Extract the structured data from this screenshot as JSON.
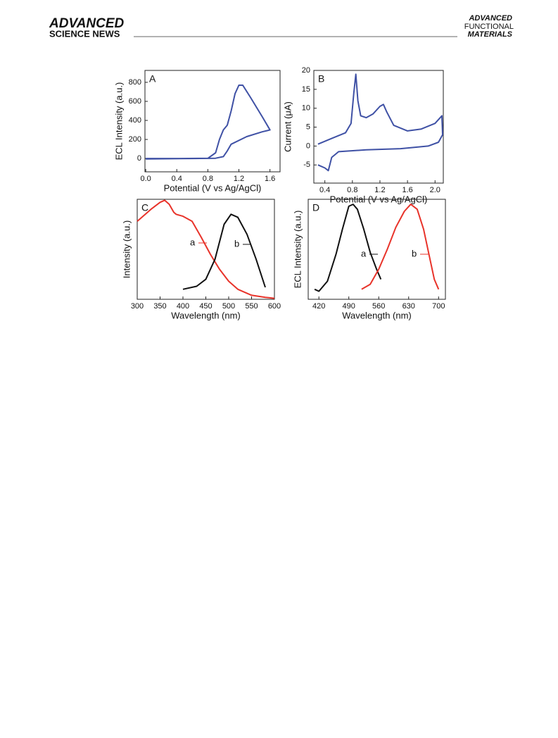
{
  "header": {
    "brand_top": "ADVANCED",
    "brand_bottom": "SCIENCE NEWS",
    "journal": [
      "ADVANCED",
      "FUNCTIONAL",
      "MATERIALS"
    ]
  },
  "chart_data": [
    {
      "type": "line",
      "panel": "A",
      "xlabel": "Potential (V vs Ag/AgCl)",
      "ylabel": "ECL Intensity (a.u.)",
      "xlim": [
        -0.01,
        1.73
      ],
      "ylim": [
        -140,
        925
      ],
      "xticks": [
        {
          "value": 0,
          "label": "0.0"
        },
        0.4,
        0.8,
        1.2,
        1.6
      ],
      "yticks": [
        0,
        200,
        400,
        600,
        800
      ],
      "series": [
        {
          "color": "#3f51a5",
          "x": [
            0,
            0.4,
            0.8,
            0.9,
            0.95,
            1.0,
            1.05,
            1.1,
            1.15,
            1.2,
            1.25,
            1.35,
            1.5,
            1.6,
            1.5,
            1.3,
            1.1,
            1.05,
            1.0,
            0.9,
            0.6,
            0
          ],
          "values": [
            0,
            0,
            2,
            60,
            200,
            300,
            350,
            500,
            680,
            770,
            770,
            640,
            440,
            300,
            280,
            230,
            150,
            80,
            20,
            3,
            0,
            -5
          ]
        }
      ]
    },
    {
      "type": "line",
      "panel": "B",
      "xlabel": "Potential (V vs Ag/AgCl)",
      "ylabel": "Current (μA)",
      "xlim": [
        0.24,
        2.12
      ],
      "ylim": [
        -9.8,
        20
      ],
      "xticks": [
        0.4,
        0.8,
        1.2,
        1.6,
        {
          "value": 2,
          "label": "2.0"
        }
      ],
      "yticks": [
        -5,
        0,
        5,
        10,
        15,
        20
      ],
      "series": [
        {
          "color": "#3f51a5",
          "x": [
            0.3,
            0.5,
            0.7,
            0.78,
            0.82,
            0.85,
            0.88,
            0.92,
            1.0,
            1.1,
            1.2,
            1.25,
            1.3,
            1.4,
            1.6,
            1.8,
            2.0,
            2.1,
            2.11,
            2.05,
            1.9,
            1.5,
            1.0,
            0.6,
            0.5,
            0.45,
            0.4,
            0.3
          ],
          "values": [
            0.5,
            2,
            3.5,
            6,
            14,
            19,
            12,
            8,
            7.5,
            8.5,
            10.5,
            11,
            9,
            5.5,
            4,
            4.5,
            6,
            8,
            3,
            1,
            0,
            -0.7,
            -1,
            -1.5,
            -3,
            -6.5,
            -5.8,
            -5
          ]
        }
      ]
    },
    {
      "type": "line",
      "panel": "C",
      "xlabel": "Wavelength (nm)",
      "ylabel": "Intensity (a.u.)",
      "xlim": [
        300,
        600
      ],
      "ylim": [
        0,
        1
      ],
      "xticks": [
        300,
        350,
        400,
        450,
        500,
        550,
        600
      ],
      "series": [
        {
          "name": "a",
          "color": "#e8332a",
          "x": [
            300,
            310,
            330,
            350,
            360,
            370,
            380,
            385,
            400,
            420,
            440,
            460,
            480,
            500,
            520,
            550,
            580,
            600
          ],
          "values": [
            0.78,
            0.82,
            0.9,
            0.97,
            0.99,
            0.95,
            0.87,
            0.85,
            0.83,
            0.78,
            0.62,
            0.45,
            0.3,
            0.18,
            0.1,
            0.04,
            0.02,
            0.01
          ]
        },
        {
          "name": "b",
          "color": "#111111",
          "x": [
            400,
            430,
            450,
            470,
            490,
            505,
            520,
            540,
            560,
            580
          ],
          "values": [
            0.1,
            0.13,
            0.2,
            0.4,
            0.75,
            0.85,
            0.82,
            0.65,
            0.4,
            0.12
          ]
        }
      ]
    },
    {
      "type": "line",
      "panel": "D",
      "xlabel": "Wavelength (nm)",
      "ylabel": "ECL Intensity (a.u.)",
      "xlim": [
        395,
        716
      ],
      "ylim": [
        0,
        1
      ],
      "xticks": [
        420,
        490,
        560,
        630,
        700
      ],
      "series": [
        {
          "name": "a",
          "color": "#111111",
          "x": [
            410,
            420,
            440,
            460,
            475,
            490,
            500,
            510,
            525,
            540,
            555,
            565
          ],
          "values": [
            0.1,
            0.08,
            0.18,
            0.45,
            0.7,
            0.93,
            0.95,
            0.9,
            0.7,
            0.47,
            0.3,
            0.2
          ]
        },
        {
          "name": "b",
          "color": "#e8332a",
          "x": [
            520,
            540,
            560,
            580,
            600,
            620,
            635,
            650,
            665,
            680,
            690,
            700
          ],
          "values": [
            0.1,
            0.15,
            0.3,
            0.5,
            0.72,
            0.88,
            0.95,
            0.9,
            0.7,
            0.4,
            0.2,
            0.1
          ]
        }
      ]
    }
  ]
}
